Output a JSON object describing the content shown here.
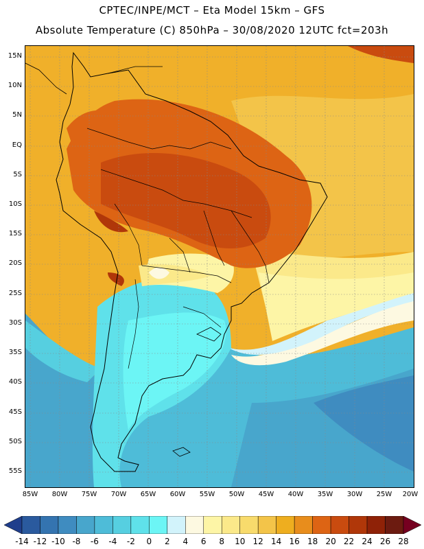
{
  "header": {
    "line1": "CPTEC/INPE/MCT –  Eta Model 15km – GFS",
    "line2": "Absolute Temperature (C) 850hPa – 30/08/2020 12UTC fct=203h"
  },
  "lat_labels": [
    "15N",
    "10N",
    "5N",
    "EQ",
    "5S",
    "10S",
    "15S",
    "20S",
    "25S",
    "30S",
    "35S",
    "40S",
    "45S",
    "50S",
    "55S"
  ],
  "lon_labels": [
    "85W",
    "80W",
    "75W",
    "70W",
    "65W",
    "60W",
    "55W",
    "50W",
    "45W",
    "40W",
    "35W",
    "30W",
    "25W",
    "20W"
  ],
  "legend": {
    "unit": "C",
    "labels": [
      "-14",
      "-12",
      "-10",
      "-8",
      "-6",
      "-4",
      "-2",
      "0",
      "2",
      "4",
      "6",
      "8",
      "10",
      "12",
      "14",
      "16",
      "18",
      "20",
      "22",
      "24",
      "26",
      "28"
    ],
    "colors": [
      "#1f3e8c",
      "#2a5a9e",
      "#3474b0",
      "#3f8cc0",
      "#48a6cc",
      "#4ebcd8",
      "#56cfe0",
      "#5fe1ea",
      "#6cf5f5",
      "#d2f3fb",
      "#fdf9e1",
      "#fdf5a6",
      "#fbe98a",
      "#f8db6c",
      "#f3c449",
      "#eeae1f",
      "#e88d1c",
      "#dd6414",
      "#c94b0f",
      "#b03709",
      "#8f2207",
      "#6c1b10",
      "#760020"
    ]
  }
}
